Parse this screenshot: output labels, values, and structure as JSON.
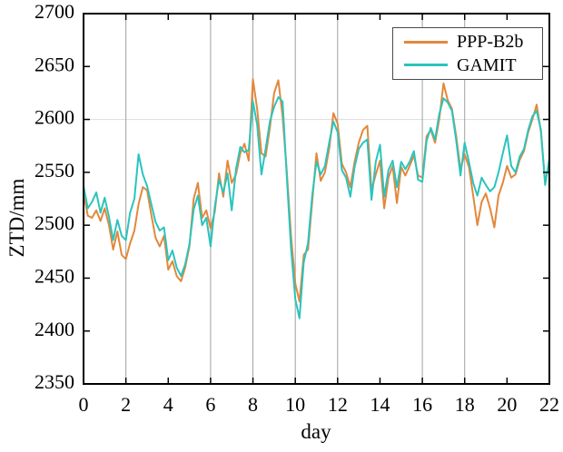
{
  "figure": {
    "background": "#ffffff"
  },
  "chart_data": {
    "type": "line",
    "title": "",
    "xlabel": "day",
    "ylabel": "ZTD/mm",
    "xlim": [
      0,
      22
    ],
    "ylim": [
      2350,
      2700
    ],
    "xticks": [
      0,
      2,
      4,
      6,
      8,
      10,
      12,
      14,
      16,
      18,
      20,
      22
    ],
    "yticks": [
      2350,
      2400,
      2450,
      2500,
      2550,
      2600,
      2650,
      2700
    ],
    "grid": {
      "vertical_at_x": [
        2,
        6,
        8,
        10,
        12,
        16,
        18
      ],
      "horizontal_at_y": [
        2600
      ],
      "vertical_color": "#a0a0a0",
      "horizontal_color": "#dcdcdc"
    },
    "legend_position": "top-right",
    "x_start": 0,
    "x_step": 0.2,
    "series": [
      {
        "name": "PPP-B2b",
        "color": "#e2883c",
        "values": [
          2531,
          2509,
          2507,
          2514,
          2504,
          2516,
          2500,
          2477,
          2494,
          2472,
          2468,
          2483,
          2495,
          2520,
          2536,
          2533,
          2510,
          2488,
          2480,
          2490,
          2458,
          2466,
          2452,
          2447,
          2460,
          2480,
          2525,
          2540,
          2507,
          2514,
          2497,
          2513,
          2549,
          2527,
          2561,
          2540,
          2548,
          2568,
          2577,
          2561,
          2638,
          2610,
          2568,
          2565,
          2592,
          2625,
          2637,
          2603,
          2550,
          2490,
          2445,
          2428,
          2472,
          2477,
          2522,
          2568,
          2542,
          2550,
          2572,
          2606,
          2596,
          2558,
          2550,
          2536,
          2560,
          2578,
          2590,
          2594,
          2533,
          2548,
          2561,
          2516,
          2545,
          2556,
          2521,
          2555,
          2547,
          2556,
          2566,
          2547,
          2545,
          2584,
          2590,
          2578,
          2600,
          2634,
          2618,
          2610,
          2584,
          2553,
          2567,
          2555,
          2528,
          2500,
          2522,
          2530,
          2516,
          2498,
          2528,
          2540,
          2556,
          2545,
          2548,
          2562,
          2570,
          2588,
          2600,
          2614,
          2588,
          2541,
          2558
        ]
      },
      {
        "name": "GAMIT",
        "color": "#2bc4bd",
        "values": [
          2537,
          2516,
          2522,
          2531,
          2512,
          2526,
          2508,
          2486,
          2505,
          2490,
          2486,
          2512,
          2525,
          2567,
          2548,
          2537,
          2520,
          2503,
          2495,
          2498,
          2467,
          2476,
          2460,
          2452,
          2463,
          2482,
          2515,
          2528,
          2500,
          2507,
          2480,
          2518,
          2543,
          2531,
          2549,
          2514,
          2553,
          2574,
          2569,
          2571,
          2617,
          2595,
          2548,
          2572,
          2598,
          2612,
          2621,
          2617,
          2545,
          2478,
          2430,
          2412,
          2465,
          2483,
          2528,
          2560,
          2548,
          2556,
          2578,
          2598,
          2588,
          2552,
          2545,
          2527,
          2555,
          2572,
          2578,
          2581,
          2524,
          2560,
          2576,
          2527,
          2552,
          2561,
          2536,
          2560,
          2553,
          2560,
          2570,
          2543,
          2541,
          2580,
          2592,
          2581,
          2605,
          2620,
          2616,
          2608,
          2580,
          2547,
          2578,
          2560,
          2540,
          2528,
          2545,
          2538,
          2532,
          2536,
          2550,
          2568,
          2585,
          2556,
          2550,
          2565,
          2572,
          2590,
          2603,
          2608,
          2590,
          2538,
          2563
        ]
      }
    ]
  }
}
